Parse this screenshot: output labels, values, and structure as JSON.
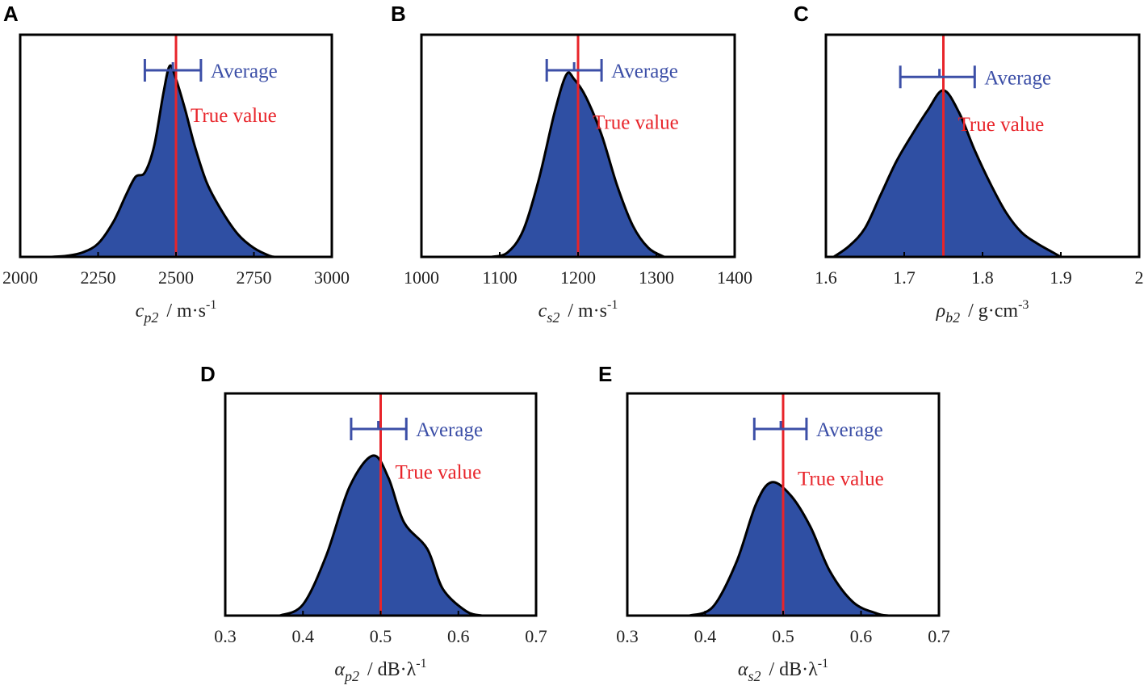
{
  "colors": {
    "fill": "#2f4fa3",
    "outline": "#000000",
    "true_line": "#e8242a",
    "average_bar": "#3c4fa7"
  },
  "chart_data": [
    {
      "panel": "A",
      "type": "area",
      "xlabel_var": "c",
      "xlabel_sub": "p2",
      "xlabel_unit": "/ m·s",
      "xlabel_sup": "-1",
      "xlim": [
        2000,
        3000
      ],
      "xticks": [
        "2000",
        "2250",
        "2500",
        "2750",
        "3000"
      ],
      "xtick_values": [
        2000,
        2250,
        2500,
        2750,
        3000
      ],
      "ylim": [
        0,
        1
      ],
      "true_value": 2500,
      "average": {
        "mean": 2490,
        "low": 2400,
        "high": 2580
      },
      "average_label": "Average",
      "true_label": "True value",
      "density": [
        [
          2100,
          0
        ],
        [
          2150,
          0.005
        ],
        [
          2200,
          0.02
        ],
        [
          2250,
          0.06
        ],
        [
          2300,
          0.16
        ],
        [
          2340,
          0.28
        ],
        [
          2370,
          0.36
        ],
        [
          2400,
          0.38
        ],
        [
          2430,
          0.5
        ],
        [
          2460,
          0.74
        ],
        [
          2480,
          0.86
        ],
        [
          2500,
          0.8
        ],
        [
          2530,
          0.66
        ],
        [
          2560,
          0.5
        ],
        [
          2600,
          0.33
        ],
        [
          2650,
          0.2
        ],
        [
          2700,
          0.1
        ],
        [
          2750,
          0.04
        ],
        [
          2800,
          0.005
        ],
        [
          2820,
          0
        ]
      ]
    },
    {
      "panel": "B",
      "type": "area",
      "xlabel_var": "c",
      "xlabel_sub": "s2",
      "xlabel_unit": "/ m·s",
      "xlabel_sup": "-1",
      "xlim": [
        1000,
        1400
      ],
      "xticks": [
        "1000",
        "1100",
        "1200",
        "1300",
        "1400"
      ],
      "xtick_values": [
        1000,
        1100,
        1200,
        1300,
        1400
      ],
      "ylim": [
        0,
        1
      ],
      "true_value": 1200,
      "average": {
        "mean": 1195,
        "low": 1160,
        "high": 1230
      },
      "average_label": "Average",
      "true_label": "True value",
      "density": [
        [
          1090,
          0
        ],
        [
          1110,
          0.02
        ],
        [
          1130,
          0.12
        ],
        [
          1150,
          0.35
        ],
        [
          1170,
          0.65
        ],
        [
          1185,
          0.82
        ],
        [
          1195,
          0.8
        ],
        [
          1210,
          0.72
        ],
        [
          1230,
          0.55
        ],
        [
          1250,
          0.32
        ],
        [
          1270,
          0.14
        ],
        [
          1290,
          0.04
        ],
        [
          1310,
          0
        ]
      ]
    },
    {
      "panel": "C",
      "type": "area",
      "xlabel_var": "ρ",
      "xlabel_sub": "b2",
      "xlabel_unit": "/ g·cm",
      "xlabel_sup": "-3",
      "xlim": [
        1.6,
        2.0
      ],
      "xticks": [
        "1.6",
        "1.7",
        "1.8",
        "1.9",
        "2"
      ],
      "xtick_values": [
        1.6,
        1.7,
        1.8,
        1.9,
        2.0
      ],
      "ylim": [
        0,
        1
      ],
      "true_value": 1.75,
      "average": {
        "mean": 1.745,
        "low": 1.695,
        "high": 1.79
      },
      "average_label": "Average",
      "true_label": "True value",
      "density": [
        [
          1.61,
          0
        ],
        [
          1.63,
          0.05
        ],
        [
          1.65,
          0.13
        ],
        [
          1.67,
          0.28
        ],
        [
          1.69,
          0.43
        ],
        [
          1.71,
          0.55
        ],
        [
          1.73,
          0.66
        ],
        [
          1.75,
          0.75
        ],
        [
          1.77,
          0.65
        ],
        [
          1.79,
          0.48
        ],
        [
          1.81,
          0.33
        ],
        [
          1.83,
          0.2
        ],
        [
          1.85,
          0.11
        ],
        [
          1.87,
          0.06
        ],
        [
          1.89,
          0.02
        ],
        [
          1.9,
          0
        ]
      ]
    },
    {
      "panel": "D",
      "type": "area",
      "xlabel_var": "α",
      "xlabel_sub": "p2",
      "xlabel_unit": "/ dB·λ",
      "xlabel_sup": "-1",
      "xlim": [
        0.3,
        0.7
      ],
      "xticks": [
        "0.3",
        "0.4",
        "0.5",
        "0.6",
        "0.7"
      ],
      "xtick_values": [
        0.3,
        0.4,
        0.5,
        0.6,
        0.7
      ],
      "ylim": [
        0,
        1
      ],
      "true_value": 0.5,
      "average": {
        "mean": 0.497,
        "low": 0.462,
        "high": 0.533
      },
      "average_label": "Average",
      "true_label": "True value",
      "density": [
        [
          0.37,
          0
        ],
        [
          0.4,
          0.05
        ],
        [
          0.43,
          0.27
        ],
        [
          0.46,
          0.58
        ],
        [
          0.49,
          0.72
        ],
        [
          0.51,
          0.62
        ],
        [
          0.53,
          0.42
        ],
        [
          0.56,
          0.3
        ],
        [
          0.58,
          0.12
        ],
        [
          0.61,
          0.02
        ],
        [
          0.63,
          0
        ]
      ]
    },
    {
      "panel": "E",
      "type": "area",
      "xlabel_var": "α",
      "xlabel_sub": "s2",
      "xlabel_unit": "/ dB·λ",
      "xlabel_sup": "-1",
      "xlim": [
        0.3,
        0.7
      ],
      "xticks": [
        "0.3",
        "0.4",
        "0.5",
        "0.6",
        "0.7"
      ],
      "xtick_values": [
        0.3,
        0.4,
        0.5,
        0.6,
        0.7
      ],
      "ylim": [
        0,
        1
      ],
      "true_value": 0.5,
      "average": {
        "mean": 0.497,
        "low": 0.463,
        "high": 0.53
      },
      "average_label": "Average",
      "true_label": "True value",
      "density": [
        [
          0.38,
          0
        ],
        [
          0.41,
          0.04
        ],
        [
          0.44,
          0.24
        ],
        [
          0.465,
          0.5
        ],
        [
          0.485,
          0.6
        ],
        [
          0.51,
          0.54
        ],
        [
          0.535,
          0.4
        ],
        [
          0.56,
          0.2
        ],
        [
          0.59,
          0.06
        ],
        [
          0.62,
          0.01
        ],
        [
          0.635,
          0
        ]
      ]
    }
  ]
}
